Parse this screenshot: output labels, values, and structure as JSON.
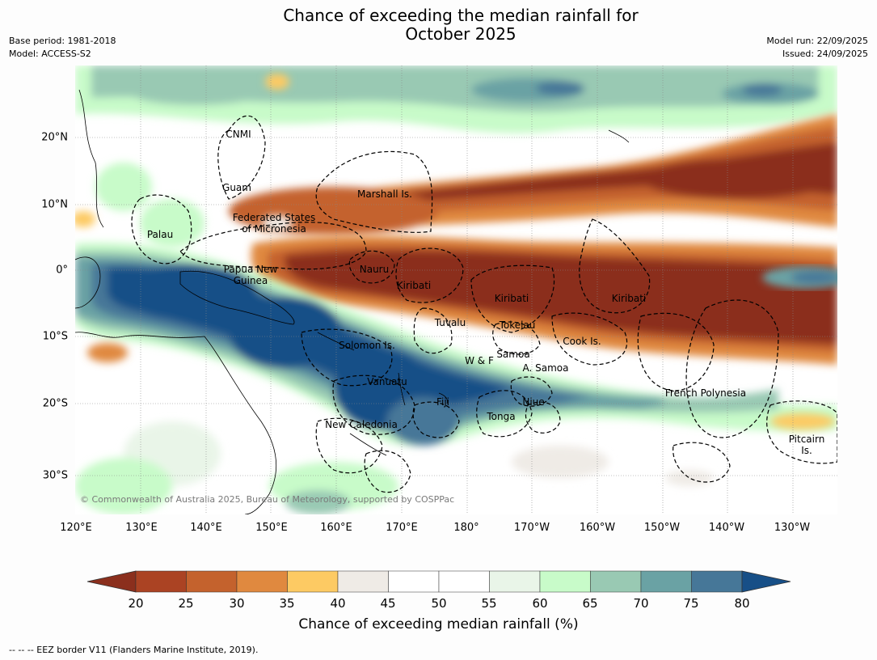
{
  "title_line1": "Chance of exceeding the median rainfall for",
  "title_line2": "October 2025",
  "meta_left": {
    "base_period": "Base period: 1981-2018",
    "model": "Model: ACCESS-S2"
  },
  "meta_right": {
    "model_run": "Model run: 22/09/2025",
    "issued": "Issued: 24/09/2025"
  },
  "lon_labels": [
    "120°E",
    "130°E",
    "140°E",
    "150°E",
    "160°E",
    "170°E",
    "180°",
    "170°W",
    "160°W",
    "150°W",
    "140°W",
    "130°W"
  ],
  "lat_labels": [
    "20°N",
    "10°N",
    "0°",
    "10°S",
    "20°S",
    "30°S"
  ],
  "places": {
    "cnmi": "CNMI",
    "guam": "Guam",
    "marshall": "Marshall Is.",
    "fsm1": "Federated States",
    "fsm2": "of Micronesia",
    "palau": "Palau",
    "png1": "Papua New",
    "png2": "Guinea",
    "nauru": "Nauru",
    "kiribati_w": "Kiribati",
    "kiribati_c": "Kiribati",
    "kiribati_e": "Kiribati",
    "tuvalu": "Tuvalu",
    "tokelau": "Tokelau",
    "cook": "Cook Is.",
    "solomon": "Solomon Is.",
    "samoa": "Samoa",
    "wf": "W & F",
    "asamoa": "A. Samoa",
    "vanuatu": "Vanuatu",
    "fiji": "Fiji",
    "niue": "Niue",
    "tonga": "Tonga",
    "fp": "French Polynesia",
    "newcal": "New Caledonia",
    "pitcairn1": "Pitcairn",
    "pitcairn2": "Is."
  },
  "credit": "© Commonwealth of Australia 2025, Bureau of Meteorology, supported by COSPPac",
  "colorbar": {
    "ticks": [
      "20",
      "25",
      "30",
      "35",
      "40",
      "45",
      "50",
      "55",
      "60",
      "65",
      "70",
      "75",
      "80"
    ],
    "colors": [
      "#8b2f1d",
      "#ab4323",
      "#c4622d",
      "#e0893f",
      "#fdca63",
      "#efebe6",
      "#ffffff",
      "#ffffff",
      "#e9f5e8",
      "#c8fbc9",
      "#99c9b3",
      "#6aa2a4",
      "#467798",
      "#174f87"
    ],
    "label": "Chance of exceeding median rainfall (%)"
  },
  "footnote": "--  --  -- EEZ border V11 (Flanders Marine Institute, 2019)."
}
